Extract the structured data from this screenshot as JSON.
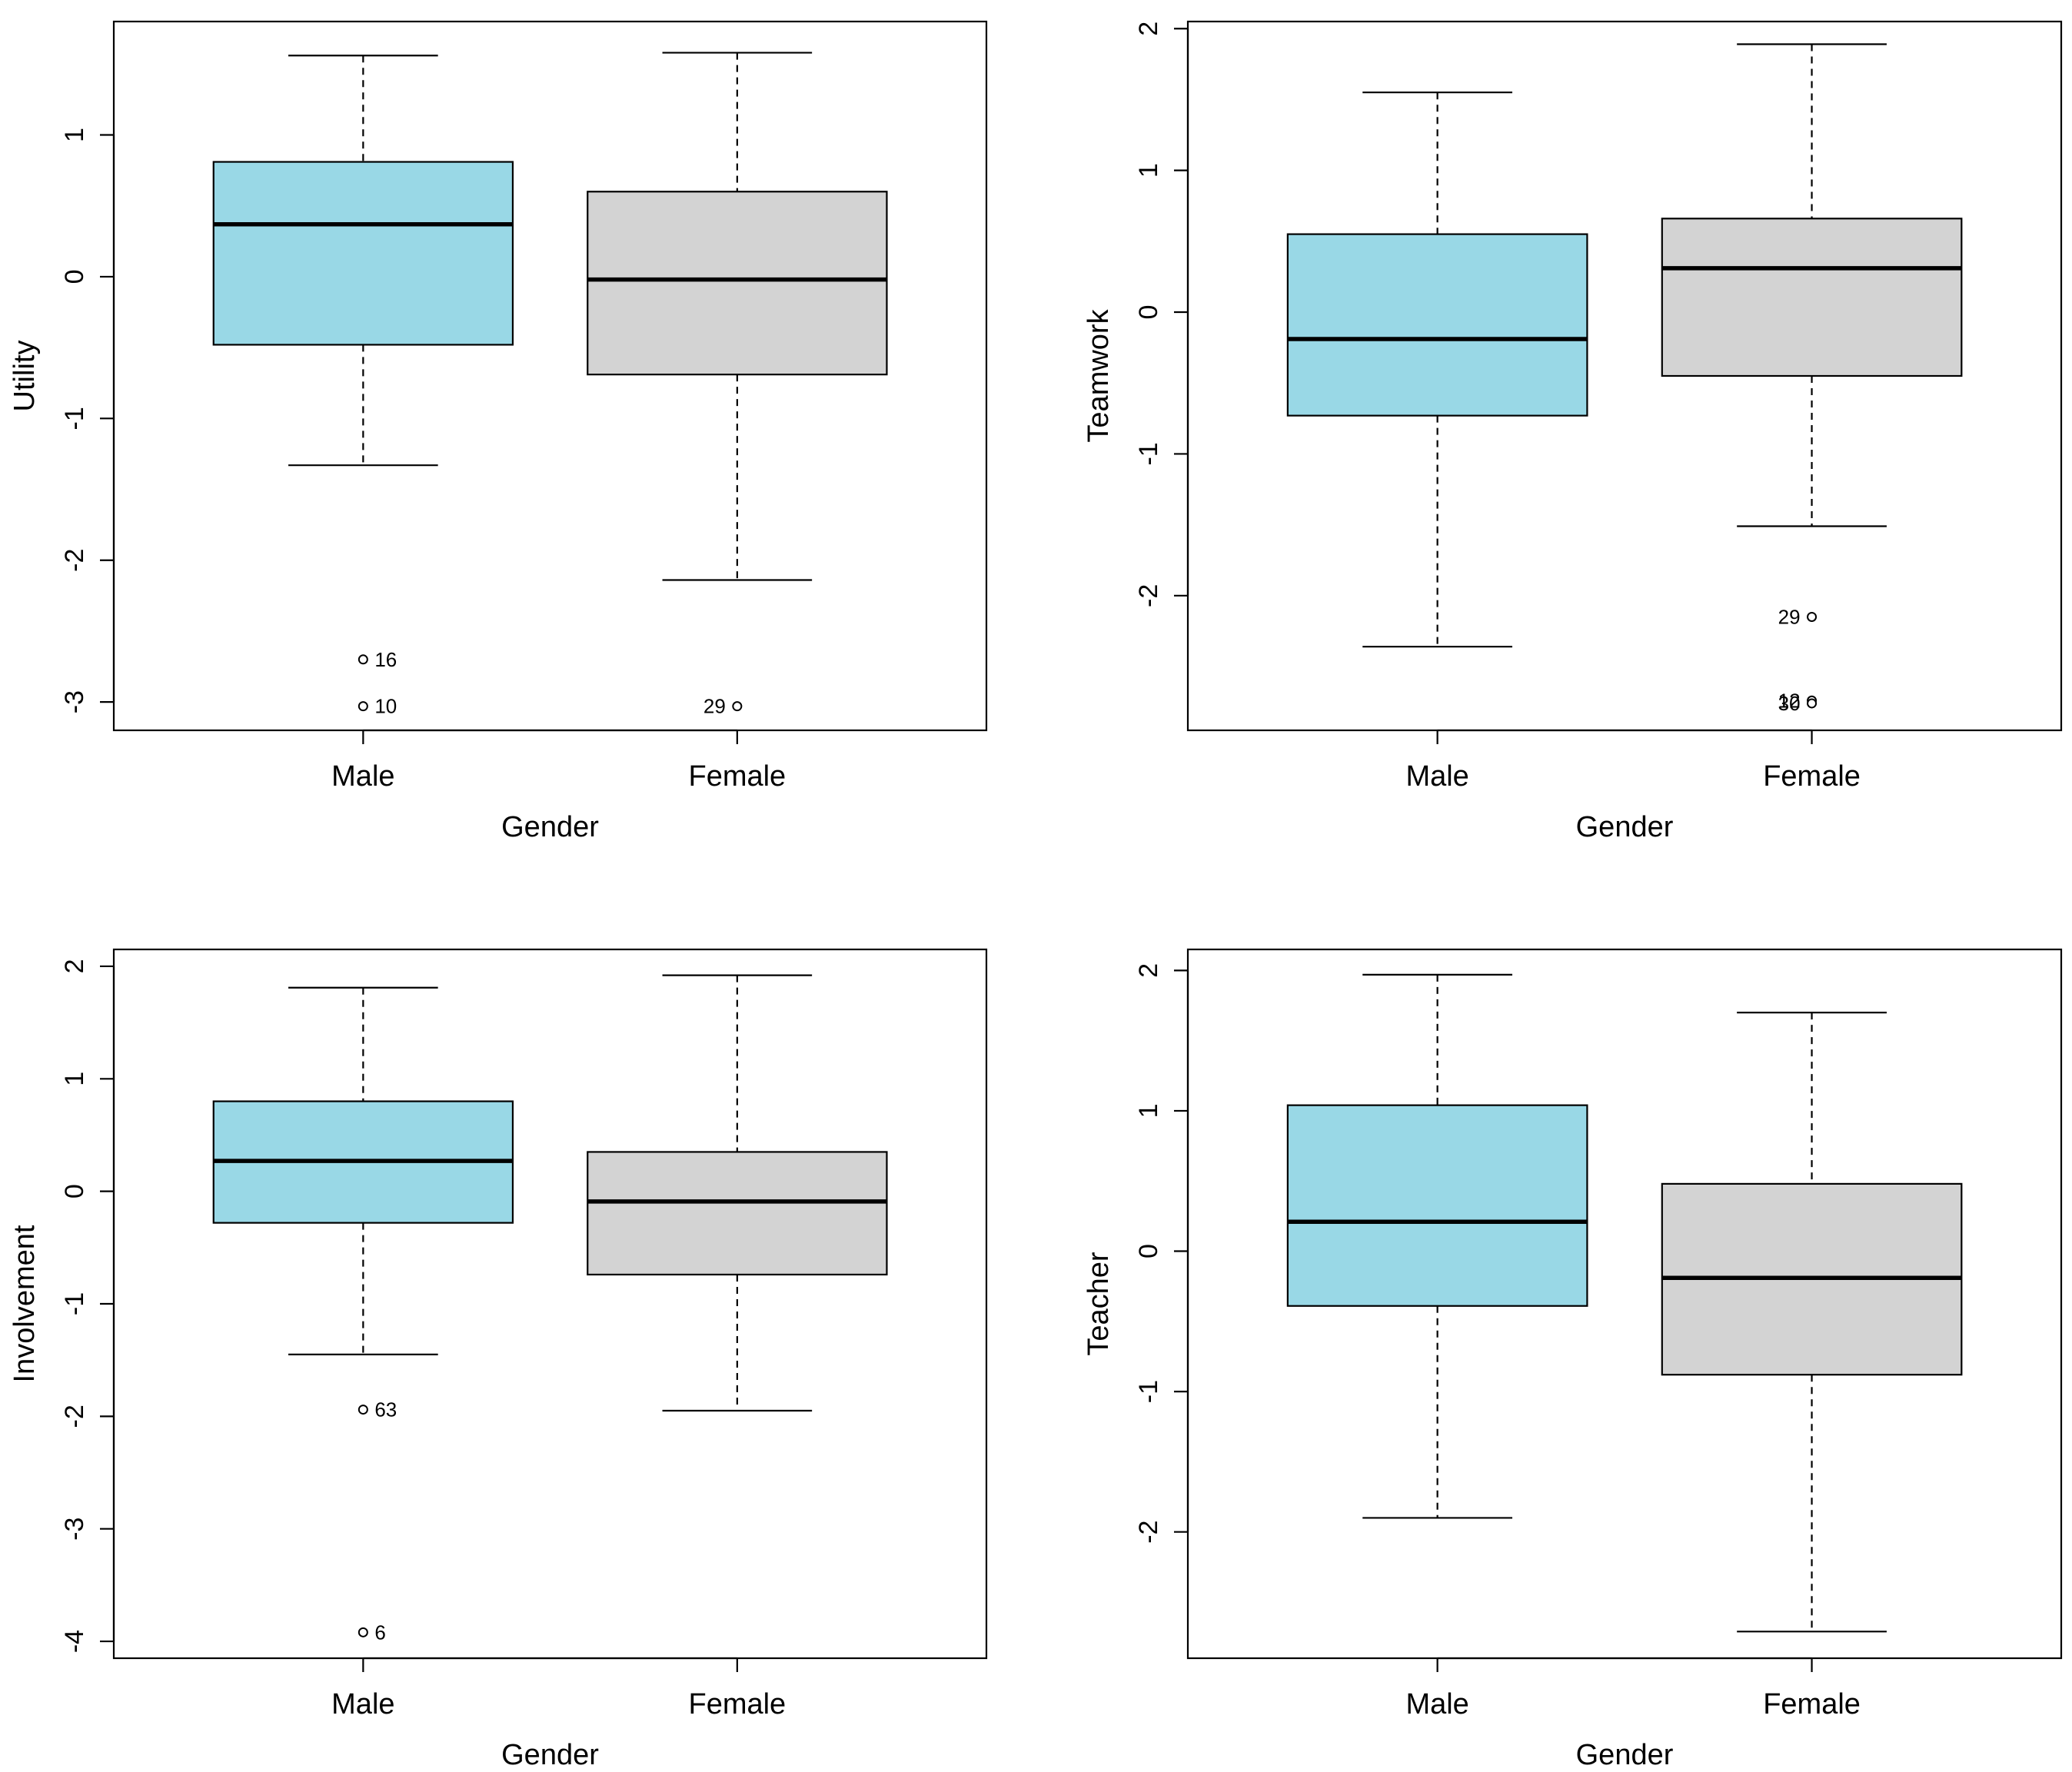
{
  "chart_data": [
    {
      "type": "box",
      "xlabel": "Gender",
      "ylabel": "Utility",
      "ylim": [
        -3.2,
        1.8
      ],
      "yticks": [
        -3,
        -2,
        -1,
        0,
        1
      ],
      "groups": [
        {
          "name": "Male",
          "color": "#99d8e6",
          "whisker_low": -1.33,
          "q1": -0.48,
          "median": 0.37,
          "q3": 0.81,
          "whisker_high": 1.56,
          "outliers": [
            {
              "value": -2.7,
              "label": "16",
              "side": "right"
            },
            {
              "value": -3.03,
              "label": "10",
              "side": "right"
            }
          ]
        },
        {
          "name": "Female",
          "color": "#d3d3d3",
          "whisker_low": -2.14,
          "q1": -0.69,
          "median": -0.02,
          "q3": 0.6,
          "whisker_high": 1.58,
          "outliers": [
            {
              "value": -3.03,
              "label": "29",
              "side": "left"
            }
          ]
        }
      ]
    },
    {
      "type": "box",
      "xlabel": "Gender",
      "ylabel": "Teamwork",
      "ylim": [
        -2.95,
        2.05
      ],
      "yticks": [
        -2,
        -1,
        0,
        1,
        2
      ],
      "groups": [
        {
          "name": "Male",
          "color": "#99d8e6",
          "whisker_low": -2.36,
          "q1": -0.73,
          "median": -0.19,
          "q3": 0.55,
          "whisker_high": 1.55,
          "outliers": []
        },
        {
          "name": "Female",
          "color": "#d3d3d3",
          "whisker_low": -1.51,
          "q1": -0.45,
          "median": 0.31,
          "q3": 0.66,
          "whisker_high": 1.89,
          "outliers": [
            {
              "value": -2.15,
              "label": "29",
              "side": "left"
            },
            {
              "value": -2.74,
              "label": "12",
              "side": "left"
            },
            {
              "value": -2.76,
              "label": "30",
              "side": "left"
            }
          ]
        }
      ]
    },
    {
      "type": "box",
      "xlabel": "Gender",
      "ylabel": "Involvement",
      "ylim": [
        -4.15,
        2.15
      ],
      "yticks": [
        -4,
        -3,
        -2,
        -1,
        0,
        1,
        2
      ],
      "groups": [
        {
          "name": "Male",
          "color": "#99d8e6",
          "whisker_low": -1.45,
          "q1": -0.28,
          "median": 0.27,
          "q3": 0.8,
          "whisker_high": 1.81,
          "outliers": [
            {
              "value": -1.94,
              "label": "63",
              "side": "right"
            },
            {
              "value": -3.92,
              "label": "6",
              "side": "right"
            }
          ]
        },
        {
          "name": "Female",
          "color": "#d3d3d3",
          "whisker_low": -1.95,
          "q1": -0.74,
          "median": -0.09,
          "q3": 0.35,
          "whisker_high": 1.92,
          "outliers": []
        }
      ]
    },
    {
      "type": "box",
      "xlabel": "Gender",
      "ylabel": "Teacher",
      "ylim": [
        -2.9,
        2.15
      ],
      "yticks": [
        -2,
        -1,
        0,
        1,
        2
      ],
      "groups": [
        {
          "name": "Male",
          "color": "#99d8e6",
          "whisker_low": -1.9,
          "q1": -0.39,
          "median": 0.21,
          "q3": 1.04,
          "whisker_high": 1.97,
          "outliers": []
        },
        {
          "name": "Female",
          "color": "#d3d3d3",
          "whisker_low": -2.71,
          "q1": -0.88,
          "median": -0.19,
          "q3": 0.48,
          "whisker_high": 1.7,
          "outliers": []
        }
      ]
    }
  ]
}
